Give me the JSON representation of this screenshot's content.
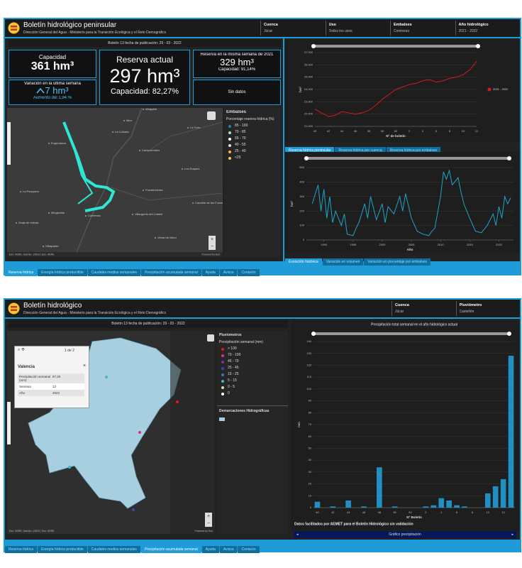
{
  "top": {
    "header": {
      "title": "Boletín hidrológico peninsular",
      "subtitle": "Dirección General del Agua - Ministerio para la Transición Ecológica y el Reto Demográfico"
    },
    "filters": [
      {
        "label": "Cuenca",
        "value": "Júcar"
      },
      {
        "label": "Uso",
        "value": "Todos los usos"
      },
      {
        "label": "Embalses",
        "value": "Contreras"
      },
      {
        "label": "Año hidrológico",
        "value": "2021 - 2022"
      }
    ],
    "bulletin": "Boletín 13 fecha de publicación: 29 - 03 - 2022",
    "kpis": {
      "capacity": {
        "label": "Capacidad",
        "value": "361 hm³"
      },
      "variation": {
        "label": "Variación en la última semana",
        "value": "7 hm³",
        "note": "Aumento del 1,94 %"
      },
      "reserve": {
        "label": "Reserva actual",
        "value": "297 hm³",
        "note": "Capacidad: 82,27%"
      },
      "last_year": {
        "label": "Reserva en la misma semana de 2021",
        "value": "329 hm³",
        "note": "Capacidad: 91,14%"
      },
      "no_data": "Sin datos"
    },
    "map": {
      "places": [
        "Aliaguilla",
        "Mira",
        "Enguídanos",
        "La Cañada",
        "La Torre",
        "Los Duques",
        "Camporrobles",
        "La Pesquera",
        "Fuenterrobles",
        "Minglanilla",
        "Contreras",
        "Villargordo del Cabriel",
        "Caudete de las Fuentes",
        "Graja de Iniesta",
        "Villalpardo",
        "Venta del Moro"
      ],
      "attribution": "Esri, HERE, Garmin, USGS | Esri, HERE",
      "credit": "Powered by Esri"
    },
    "legend": {
      "title": "Embalses",
      "subtitle": "Porcentaje reserva hídrica (%)",
      "items": [
        {
          "label": "85 - 100",
          "color": "#2c7bb6"
        },
        {
          "label": "70 - 85",
          "color": "#abd9e9"
        },
        {
          "label": "55 - 70",
          "color": "#ffffff"
        },
        {
          "label": "40 - 55",
          "color": "#e0e0e0"
        },
        {
          "label": "25 - 40",
          "color": "#fdae61"
        },
        {
          "label": "<25",
          "color": "#f4d03f"
        }
      ]
    },
    "weekly_chart": {
      "type": "line",
      "categories": [
        "40",
        null,
        "42",
        null,
        "44",
        null,
        "46",
        null,
        "48",
        null,
        "50",
        null,
        "52",
        null,
        "2",
        null,
        "4",
        null,
        "6",
        null,
        "8",
        null,
        "10",
        null,
        "12"
      ],
      "series": [
        {
          "name": "2021 - 2022",
          "color": "#d7191c",
          "values": [
            22400,
            22100,
            21800,
            21900,
            22200,
            22100,
            22000,
            22100,
            22300,
            22700,
            23200,
            23600,
            24000,
            24200,
            24400,
            24500,
            24700,
            24800,
            24600,
            24700,
            24900,
            25000,
            25200,
            25600,
            26300
          ]
        }
      ],
      "ylim": [
        21000,
        27000
      ],
      "yticks": [
        {
          "value": 21000,
          "label": "21.000"
        },
        {
          "value": 22000,
          "label": "22.000"
        },
        {
          "value": 23000,
          "label": "23.000"
        },
        {
          "value": 24000,
          "label": "24.000"
        },
        {
          "value": 25000,
          "label": "25.000"
        },
        {
          "value": 26000,
          "label": "26.000"
        },
        {
          "value": 27000,
          "label": "27.000"
        }
      ],
      "xlabel": "Nº de boletín",
      "ylabel": "hm³"
    },
    "weekly_tabs": [
      "Reserva hídrica peninsular",
      "Reserva hídrica por cuenca",
      "Reserva hídrica por embalses"
    ],
    "history_chart": {
      "type": "line",
      "x": [
        1988,
        1989,
        1989.5,
        1990,
        1990.5,
        1991,
        1991.5,
        1992,
        1993,
        1993.5,
        1994,
        1995,
        1995.5,
        1996,
        1997,
        1997.5,
        1998,
        1999,
        2000,
        2000.5,
        2001,
        2002,
        2003,
        2003.5,
        2004,
        2005,
        2006,
        2007,
        2008,
        2008.5,
        2009,
        2010,
        2010.5,
        2011,
        2011.5,
        2012,
        2013,
        2013.5,
        2014,
        2015,
        2016,
        2017,
        2018,
        2019,
        2019.5,
        2020,
        2020.5,
        2021,
        2021.5,
        2022
      ],
      "series": [
        {
          "color": "#1fa5c9",
          "values": [
            250,
            380,
            200,
            350,
            150,
            300,
            120,
            200,
            100,
            180,
            40,
            30,
            80,
            120,
            250,
            150,
            300,
            140,
            250,
            120,
            230,
            180,
            300,
            200,
            320,
            150,
            60,
            40,
            30,
            60,
            80,
            300,
            470,
            420,
            480,
            380,
            430,
            330,
            250,
            150,
            60,
            50,
            100,
            180,
            100,
            230,
            150,
            300,
            250,
            290
          ]
        }
      ],
      "xlim": [
        1987,
        2022.5
      ],
      "xticks": [
        1990,
        1995,
        2000,
        2005,
        2010,
        2015,
        2020
      ],
      "ylim": [
        0,
        500
      ],
      "yticks": [
        0,
        100,
        200,
        300,
        400,
        500
      ],
      "xlabel": "Año",
      "ylabel": "hm³"
    },
    "history_tabs": [
      "Evolución histórica",
      "Variación en volumen",
      "Variación en porcentaje por embalses"
    ],
    "nav": [
      "Reserva hídrica",
      "Energía hídrica productible",
      "Caudales medios semanales",
      "Precipitación acumulada semanal",
      "Ayuda",
      "Avisos",
      "Contacto"
    ]
  },
  "bottom": {
    "header": {
      "title": "Boletín hidrológico",
      "subtitle": "Dirección General del Agua - Ministerio para la Transición Ecológica y el Reto Demográfico"
    },
    "filters": [
      {
        "label": "Cuenca",
        "value": "Júcar"
      },
      {
        "label": "Pluviómetro",
        "value": "Castellón"
      }
    ],
    "bulletin": "Boletín 13 fecha de publicación: 29 - 03 - 2022",
    "popup": {
      "pager": "1 de 2",
      "title": "Valencia",
      "rows": [
        [
          "Precipitación semanal (mm)",
          "87,20"
        ],
        [
          "Semana",
          "13"
        ],
        [
          "Año",
          "2022"
        ]
      ]
    },
    "map": {
      "attribution": "Esri, HERE, Garmin, USGS | Esri, HERE",
      "credit": "Powered by Esri"
    },
    "legend": {
      "title": "Pluviometros",
      "subtitle": "Precipitación semanal (mm)",
      "items": [
        {
          "label": "> 100",
          "color": "#e31a1c"
        },
        {
          "label": "70 - 100",
          "color": "#e7298a"
        },
        {
          "label": "45 - 70",
          "color": "#7b3294"
        },
        {
          "label": "25 - 45",
          "color": "#3f3fbf"
        },
        {
          "label": "15 - 25",
          "color": "#2c7bb6"
        },
        {
          "label": "5 - 15",
          "color": "#41b6c4"
        },
        {
          "label": "0 - 5",
          "color": "#c7e9b4"
        },
        {
          "label": "0",
          "color": "#ffffff"
        }
      ],
      "areas_title": "Demarcaciones Hidrográficas"
    },
    "precip_chart": {
      "type": "bar",
      "title": "Precipitación total semanal en el año hidrológico actual",
      "categories": [
        "40",
        null,
        "42",
        null,
        "44",
        null,
        "46",
        null,
        "48",
        null,
        "50",
        null,
        "52",
        null,
        "2",
        null,
        "4",
        null,
        "6",
        null,
        "8",
        null,
        "10",
        null,
        "12",
        null
      ],
      "series": [
        {
          "color": "#1f8fc4",
          "values": [
            5,
            0,
            1,
            0,
            6,
            0,
            1,
            0,
            34,
            0,
            1,
            0,
            0,
            0,
            1,
            2,
            8,
            6,
            2,
            1,
            0,
            0,
            12,
            18,
            24,
            128
          ]
        }
      ],
      "ylim": [
        0,
        140
      ],
      "yticks": [
        0,
        10,
        20,
        30,
        40,
        50,
        60,
        70,
        80,
        90,
        100,
        110,
        120,
        130,
        140
      ],
      "xlabel": "Nº Boletín",
      "ylabel": "mm"
    },
    "note": "Datos facilitados por AEMET para el Boletín Hidrológico sin validación",
    "dropdown": "Gráfico precipitación",
    "nav": [
      "Reserva hídrica",
      "Energía hídrica productible",
      "Caudales medios semanales",
      "Precipitación acumulada semanal",
      "Ayuda",
      "Avisos",
      "Contacto"
    ]
  }
}
